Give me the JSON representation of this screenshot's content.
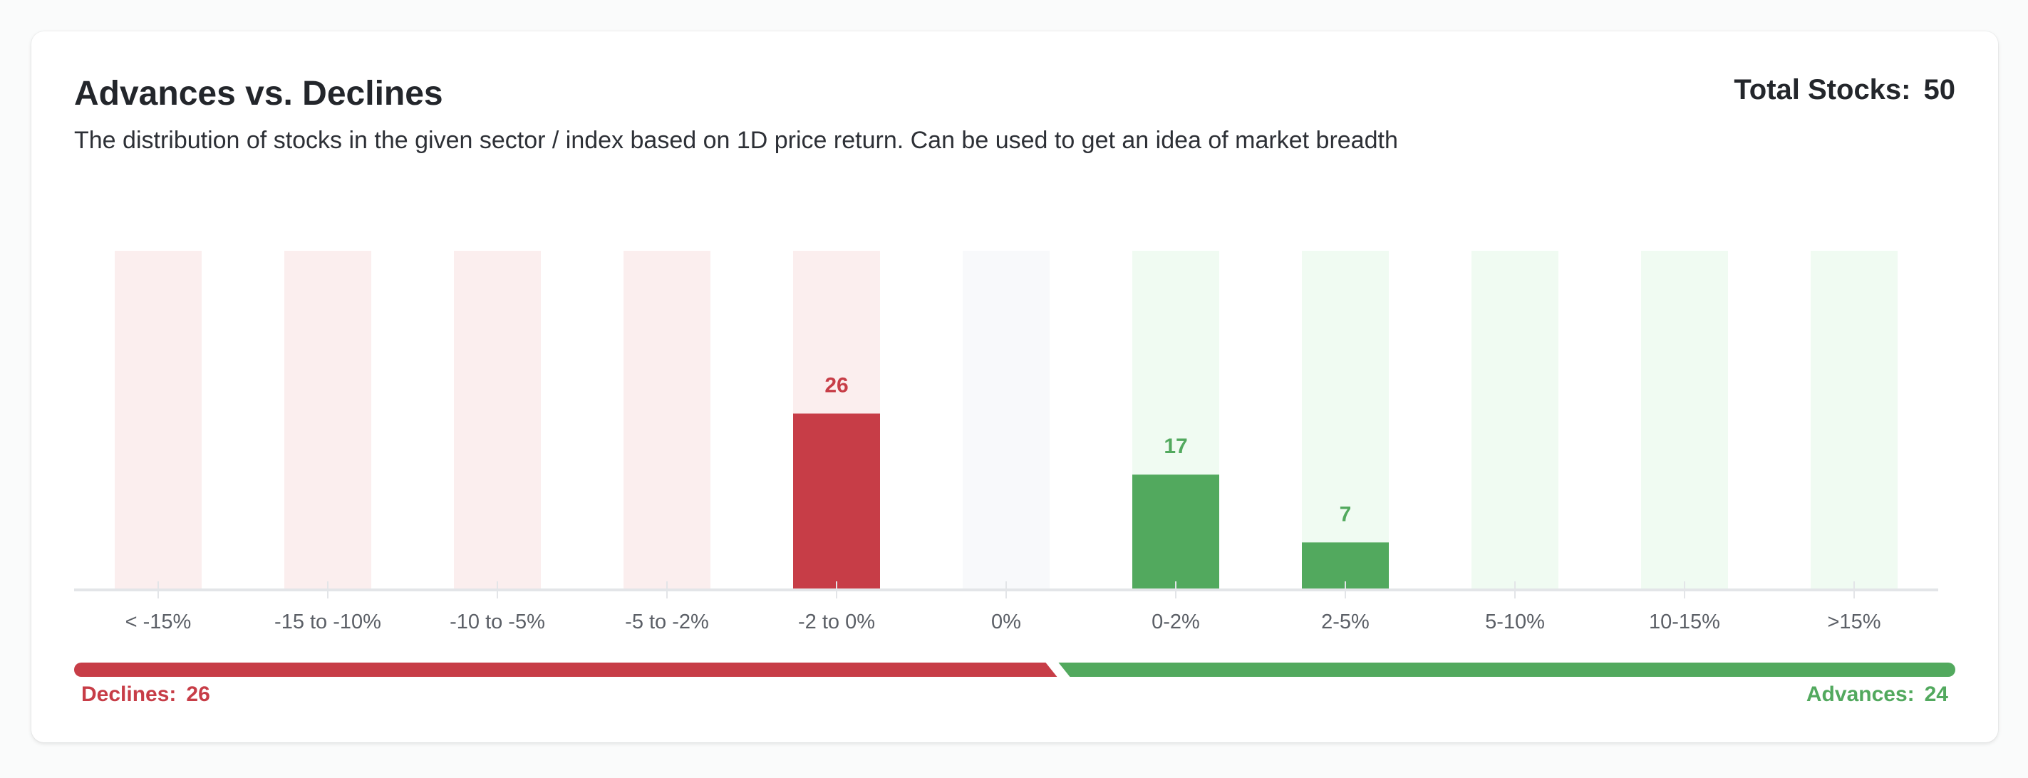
{
  "title": "Advances vs. Declines",
  "subtitle": "The distribution of stocks in the given sector / index based on 1D price return. Can be used to get an idea of market breadth",
  "total": {
    "label": "Total Stocks:",
    "value": "50"
  },
  "declines": {
    "label": "Declines:",
    "value": "26"
  },
  "advances": {
    "label": "Advances:",
    "value": "24"
  },
  "colors": {
    "decline": "#c73d47",
    "decline_bg": "#fbeeee",
    "neutral_bg": "#f8f9fb",
    "advance": "#52a95e",
    "advance_bg": "#f0fbf2",
    "axis": "#e3e5e8",
    "tick_label": "#5b5f66"
  },
  "chart_data": {
    "type": "bar",
    "categories": [
      "< -15%",
      "-15 to -10%",
      "-10 to -5%",
      "-5 to -2%",
      "-2 to 0%",
      "0%",
      "0-2%",
      "2-5%",
      "5-10%",
      "10-15%",
      ">15%"
    ],
    "values": [
      0,
      0,
      0,
      0,
      26,
      0,
      17,
      7,
      0,
      0,
      0
    ],
    "groups": [
      "decline",
      "decline",
      "decline",
      "decline",
      "decline",
      "neutral",
      "advance",
      "advance",
      "advance",
      "advance",
      "advance"
    ],
    "ylim": [
      0,
      50
    ],
    "grid": false,
    "legend": "bottom"
  }
}
